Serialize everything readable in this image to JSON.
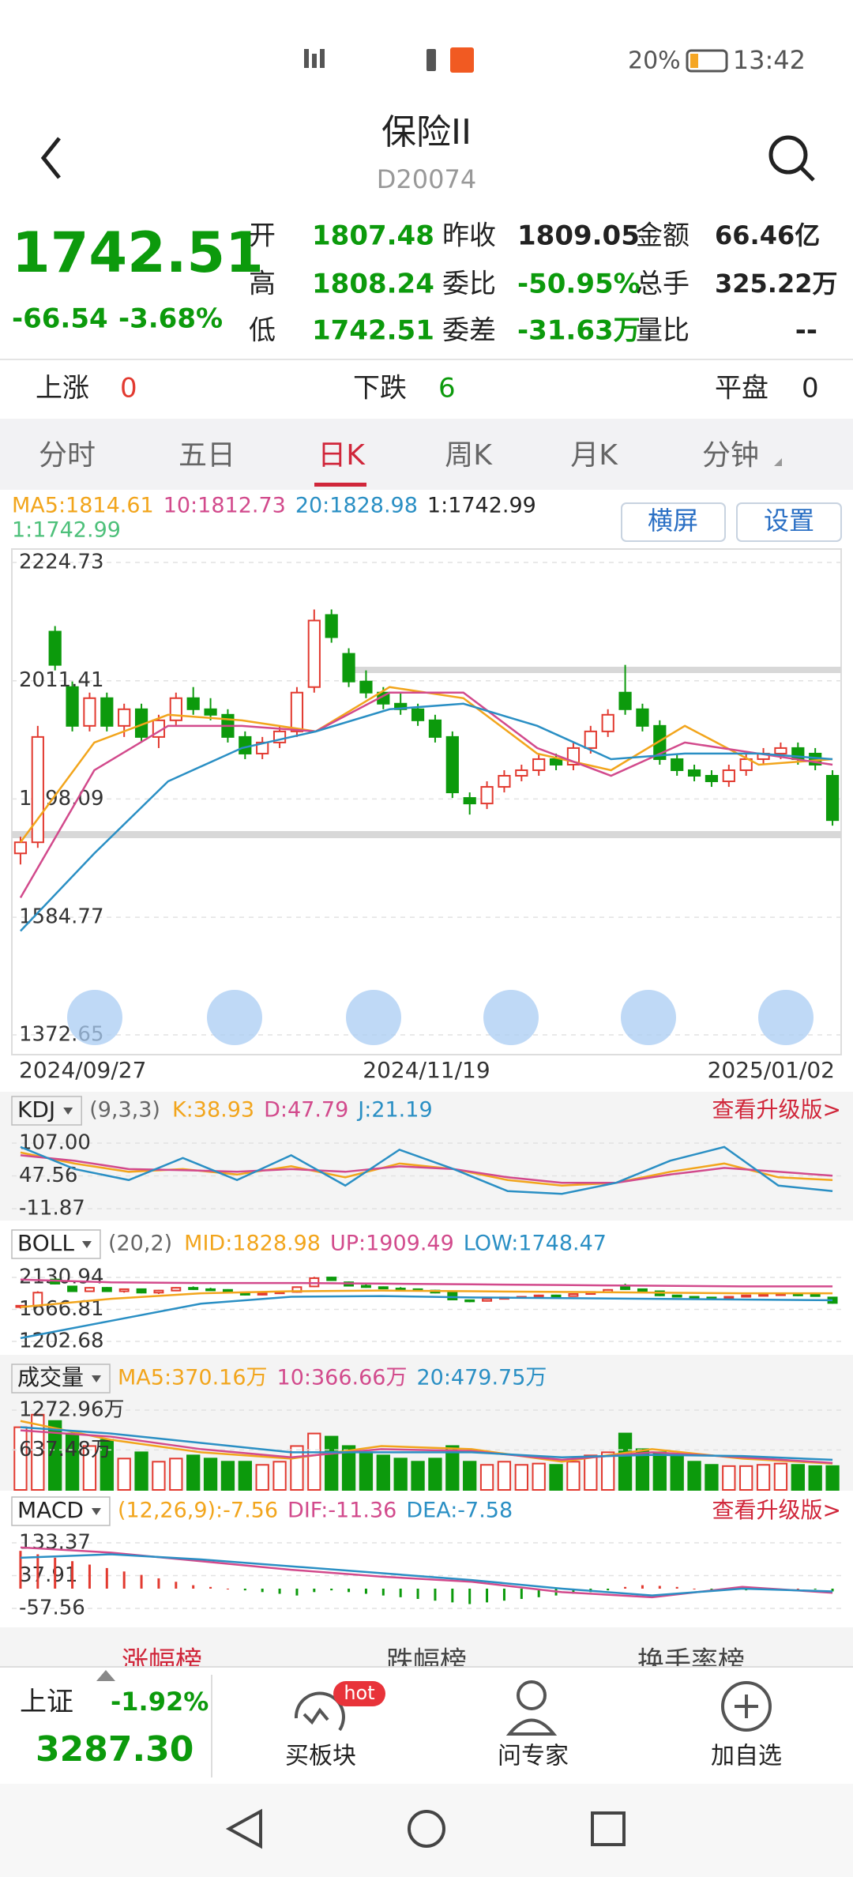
{
  "status_bar": {
    "battery": "20%",
    "time": "13:42"
  },
  "header": {
    "title": "保险II",
    "code": "D20074"
  },
  "quote": {
    "price": "1742.51",
    "change": "-66.54",
    "change_pct": "-3.68%",
    "stats": [
      [
        {
          "label": "开",
          "value": "1807.48"
        },
        {
          "label": "昨收",
          "value": "1809.05"
        },
        {
          "label": "金额",
          "value": "66.46亿"
        }
      ],
      [
        {
          "label": "高",
          "value": "1808.24"
        },
        {
          "label": "委比",
          "value": "-50.95%"
        },
        {
          "label": "总手",
          "value": "325.22万"
        }
      ],
      [
        {
          "label": "低",
          "value": "1742.51"
        },
        {
          "label": "委差",
          "value": "-31.63万"
        },
        {
          "label": "量比",
          "value": "--"
        }
      ]
    ]
  },
  "breadth": [
    {
      "label": "上涨",
      "value": "0"
    },
    {
      "label": "下跌",
      "value": "6"
    },
    {
      "label": "平盘",
      "value": "0"
    }
  ],
  "tabs": [
    "分时",
    "五日",
    "日K",
    "周K",
    "月K",
    "分钟"
  ],
  "kline": {
    "legend": [
      "MA5:1814.61",
      "10:1812.73",
      "20:1828.98",
      "1:1742.99"
    ],
    "buttons": [
      "横屏",
      "设置"
    ],
    "ylim": [
      1372.65,
      2224.73
    ],
    "yticks": [
      2224.73,
      2011.41,
      1798.09,
      1584.77,
      1372.65
    ],
    "dates": [
      "2024/09/27",
      "2024/11/19",
      "2025/01/02"
    ],
    "colors": {
      "up": "#e23a30",
      "down": "#0c9a0c"
    },
    "candles": [
      [
        1700,
        1730,
        1680,
        1720
      ],
      [
        1720,
        1930,
        1710,
        1910
      ],
      [
        2100,
        2110,
        2030,
        2040
      ],
      [
        2000,
        2010,
        1920,
        1930
      ],
      [
        1930,
        1990,
        1920,
        1980
      ],
      [
        1980,
        1990,
        1920,
        1930
      ],
      [
        1930,
        1970,
        1910,
        1960
      ],
      [
        1960,
        1970,
        1900,
        1910
      ],
      [
        1910,
        1950,
        1890,
        1940
      ],
      [
        1940,
        1990,
        1930,
        1980
      ],
      [
        1980,
        2000,
        1950,
        1960
      ],
      [
        1960,
        1980,
        1940,
        1950
      ],
      [
        1950,
        1960,
        1900,
        1910
      ],
      [
        1910,
        1920,
        1870,
        1880
      ],
      [
        1880,
        1910,
        1870,
        1900
      ],
      [
        1900,
        1930,
        1890,
        1920
      ],
      [
        1920,
        2000,
        1910,
        1990
      ],
      [
        2000,
        2140,
        1990,
        2120
      ],
      [
        2130,
        2140,
        2080,
        2090
      ],
      [
        2060,
        2070,
        2000,
        2010
      ],
      [
        2010,
        2030,
        1980,
        1990
      ],
      [
        1990,
        2000,
        1960,
        1970
      ],
      [
        1970,
        1990,
        1950,
        1960
      ],
      [
        1960,
        1970,
        1930,
        1940
      ],
      [
        1940,
        1950,
        1900,
        1910
      ],
      [
        1910,
        1920,
        1800,
        1810
      ],
      [
        1800,
        1810,
        1770,
        1790
      ],
      [
        1790,
        1830,
        1780,
        1820
      ],
      [
        1820,
        1850,
        1810,
        1840
      ],
      [
        1840,
        1860,
        1830,
        1850
      ],
      [
        1850,
        1880,
        1840,
        1870
      ],
      [
        1870,
        1880,
        1850,
        1860
      ],
      [
        1860,
        1900,
        1850,
        1890
      ],
      [
        1890,
        1930,
        1880,
        1920
      ],
      [
        1920,
        1960,
        1910,
        1950
      ],
      [
        1990,
        2040,
        1950,
        1960
      ],
      [
        1960,
        1970,
        1920,
        1930
      ],
      [
        1930,
        1940,
        1860,
        1870
      ],
      [
        1870,
        1880,
        1840,
        1850
      ],
      [
        1850,
        1860,
        1830,
        1840
      ],
      [
        1840,
        1850,
        1820,
        1830
      ],
      [
        1830,
        1860,
        1820,
        1850
      ],
      [
        1850,
        1880,
        1840,
        1870
      ],
      [
        1870,
        1890,
        1860,
        1880
      ],
      [
        1880,
        1900,
        1870,
        1890
      ],
      [
        1890,
        1900,
        1860,
        1870
      ],
      [
        1880,
        1890,
        1850,
        1860
      ],
      [
        1840,
        1850,
        1750,
        1760
      ]
    ],
    "lines": [
      {
        "color": "#f2a51c",
        "values": [
          1720,
          1900,
          1950,
          1940,
          1920,
          2000,
          1980,
          1880,
          1850,
          1930,
          1860,
          1870
        ]
      },
      {
        "color": "#d24a8c",
        "values": [
          1620,
          1850,
          1930,
          1930,
          1920,
          1990,
          1990,
          1890,
          1840,
          1900,
          1880,
          1860
        ]
      },
      {
        "color": "#2a8fc4",
        "values": [
          1560,
          1700,
          1830,
          1890,
          1920,
          1960,
          1970,
          1930,
          1870,
          1880,
          1880,
          1870
        ]
      }
    ]
  },
  "kdj": {
    "name": "KDJ",
    "params": "(9,3,3)",
    "legend": [
      "K:38.93",
      "D:47.79",
      "J:21.19"
    ],
    "upgrade": "查看升级版>",
    "ylim": [
      -11.87,
      107
    ],
    "yticks": [
      {
        "value": 107,
        "label": "107.00"
      },
      47.56,
      -11.87
    ],
    "lines": [
      {
        "color": "#f2a51c",
        "values": [
          90,
          70,
          55,
          60,
          50,
          65,
          45,
          70,
          60,
          40,
          30,
          35,
          55,
          70,
          45,
          40
        ]
      },
      {
        "color": "#d24a8c",
        "values": [
          85,
          75,
          60,
          58,
          55,
          60,
          55,
          65,
          60,
          45,
          35,
          35,
          50,
          62,
          55,
          48
        ]
      },
      {
        "color": "#2a8fc4",
        "values": [
          100,
          60,
          40,
          80,
          40,
          85,
          30,
          95,
          60,
          20,
          15,
          35,
          75,
          100,
          30,
          20
        ]
      }
    ]
  },
  "boll": {
    "name": "BOLL",
    "params": "(20,2)",
    "legend": [
      "MID:1828.98",
      "UP:1909.49",
      "LOW:1748.47"
    ],
    "ylim": [
      1202.68,
      2130.94
    ],
    "yticks": [
      2130.94,
      1666.81,
      1202.68
    ],
    "lines": [
      {
        "color": "#f2a51c",
        "values": [
          1700,
          1820,
          1900,
          1930,
          1940,
          1930,
          1920,
          1910,
          1900,
          1900
        ]
      },
      {
        "color": "#d24a8c",
        "values": [
          2100,
          2060,
          2050,
          2050,
          2040,
          2030,
          2020,
          2010,
          2000,
          2000
        ]
      },
      {
        "color": "#2a8fc4",
        "values": [
          1250,
          1500,
          1750,
          1850,
          1860,
          1840,
          1830,
          1820,
          1810,
          1800
        ]
      }
    ]
  },
  "volume": {
    "name": "成交量",
    "legend": [
      "MA5:370.16万",
      "10:366.66万",
      "20:479.75万"
    ],
    "ylim": [
      0,
      1272.96
    ],
    "yticks": [
      {
        "value": 1272.96,
        "label": "1272.96万"
      },
      {
        "value": 637.48,
        "label": "637.48万"
      }
    ],
    "values": [
      1000,
      1200,
      1100,
      900,
      700,
      800,
      500,
      600,
      450,
      500,
      550,
      500,
      450,
      450,
      400,
      450,
      700,
      900,
      850,
      700,
      600,
      550,
      500,
      450,
      500,
      700,
      450,
      400,
      450,
      400,
      420,
      400,
      450,
      550,
      600,
      900,
      650,
      600,
      550,
      450,
      400,
      380,
      380,
      400,
      420,
      400,
      380,
      380
    ],
    "lines": [
      {
        "color": "#f2a51c",
        "values": [
          1100,
          800,
          600,
          500,
          700,
          650,
          450,
          650,
          500,
          420
        ]
      },
      {
        "color": "#d24a8c",
        "values": [
          950,
          850,
          650,
          520,
          650,
          620,
          480,
          600,
          520,
          430
        ]
      },
      {
        "color": "#2a8fc4",
        "values": [
          1000,
          900,
          750,
          600,
          600,
          600,
          520,
          560,
          540,
          480
        ]
      }
    ]
  },
  "macd": {
    "name": "MACD",
    "legend": [
      "(12,26,9):-7.56",
      "DIF:-11.36",
      "DEA:-7.58"
    ],
    "upgrade": "查看升级版>",
    "ylim": [
      -57.56,
      133.37
    ],
    "yticks": [
      133.37,
      37.91,
      -57.56
    ],
    "values": [
      110,
      100,
      90,
      80,
      70,
      60,
      50,
      40,
      30,
      20,
      10,
      5,
      0,
      -5,
      -10,
      -15,
      -20,
      -10,
      -5,
      -10,
      -15,
      -20,
      -25,
      -30,
      -35,
      -40,
      -45,
      -40,
      -35,
      -30,
      -25,
      -20,
      -15,
      -10,
      -5,
      5,
      10,
      8,
      5,
      0,
      -5,
      -5,
      -5,
      -3,
      -2,
      0,
      -2,
      -8
    ],
    "lines": [
      {
        "color": "#d24a8c",
        "values": [
          120,
          105,
          80,
          55,
          35,
          20,
          -10,
          -25,
          5,
          -12
        ]
      },
      {
        "color": "#2a8fc4",
        "values": [
          90,
          100,
          85,
          65,
          45,
          25,
          0,
          -20,
          0,
          -8
        ]
      }
    ]
  },
  "bottom": {
    "tabs": [
      "涨幅榜",
      "跌幅榜",
      "换手率榜"
    ],
    "index": {
      "name": "上证",
      "change_pct": "-1.92%",
      "price": "3287.30"
    },
    "actions": [
      {
        "label": "买板块",
        "badge": "hot"
      },
      {
        "label": "问专家"
      },
      {
        "label": "加自选"
      }
    ]
  }
}
